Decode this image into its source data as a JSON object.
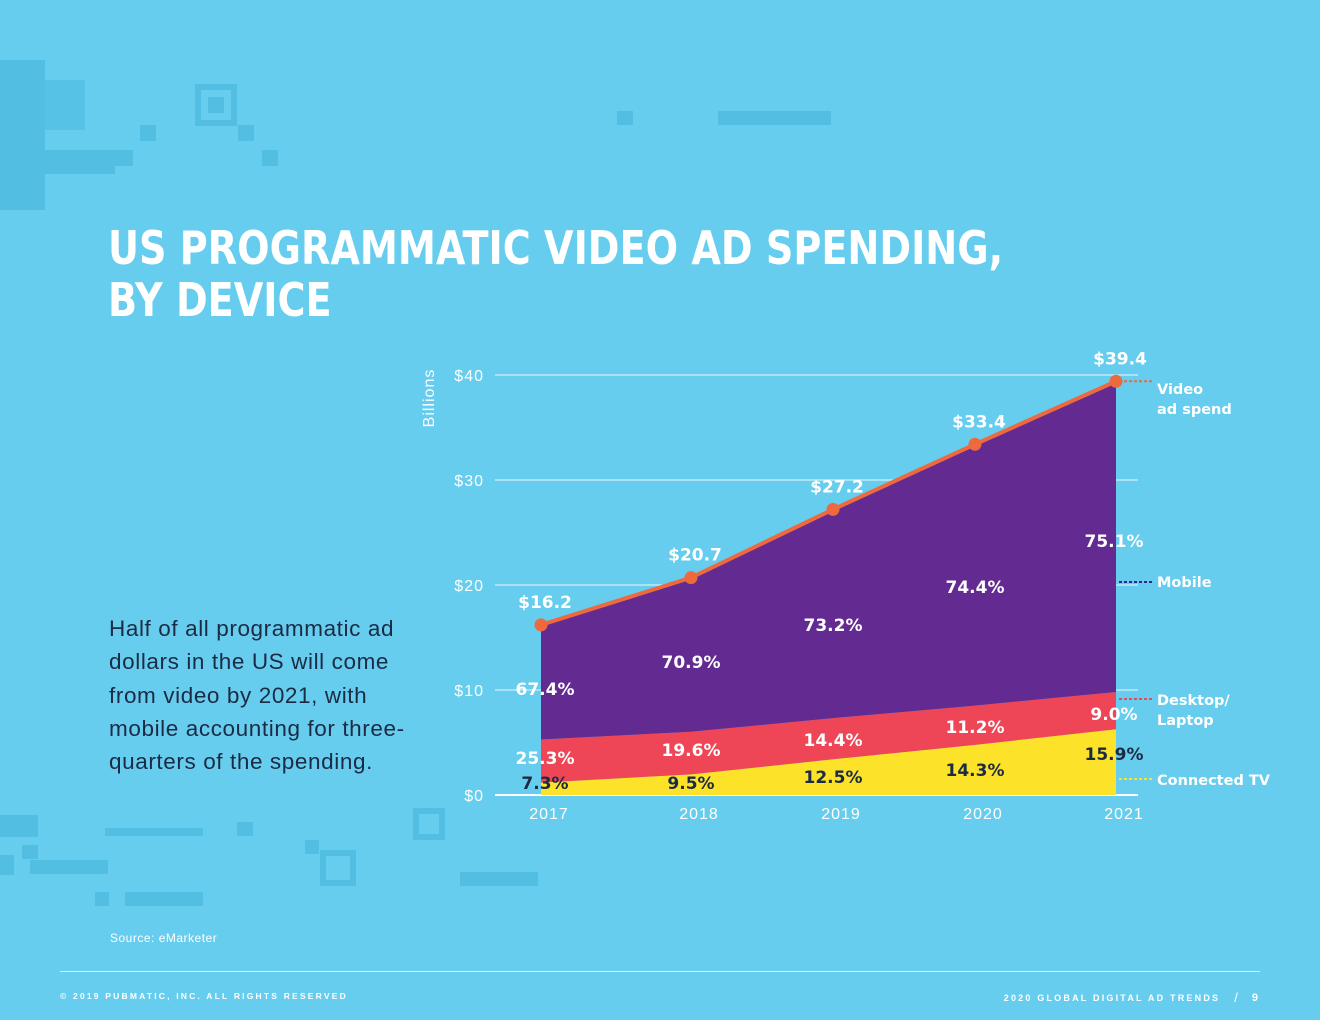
{
  "page": {
    "title_line1": "US PROGRAMMATIC VIDEO AD SPENDING,",
    "title_line2": "BY DEVICE",
    "body": "Half of all programmatic ad dollars in the US will come from video by 2021, with mobile accounting for three-quarters of the spending.",
    "source": "Source: eMarketer",
    "copyright": "© 2019 PUBMATIC, INC. ALL RIGHTS RESERVED",
    "report": "2020 GLOBAL DIGITAL AD TRENDS",
    "separator": "/",
    "page_number": "9"
  },
  "colors": {
    "background": "#66CDEE",
    "mobile": "#632A91",
    "desktop": "#EE4656",
    "ctv": "#FDE22A",
    "line": "#EE6A3E"
  },
  "chart_data": {
    "type": "area",
    "title": "US PROGRAMMATIC VIDEO AD SPENDING, BY DEVICE",
    "ylabel": "Billions",
    "ylim": [
      0,
      40
    ],
    "yticks": [
      0,
      10,
      20,
      30,
      40
    ],
    "ytick_labels": [
      "$0",
      "$10",
      "$20",
      "$30",
      "$40"
    ],
    "categories": [
      "2017",
      "2018",
      "2019",
      "2020",
      "2021"
    ],
    "total": {
      "name": "Video ad spend",
      "values": [
        16.2,
        20.7,
        27.2,
        33.4,
        39.4
      ],
      "labels": [
        "$16.2",
        "$20.7",
        "$27.2",
        "$33.4",
        "$39.4"
      ]
    },
    "series": [
      {
        "name": "Connected TV",
        "share_pct": [
          7.3,
          9.5,
          12.5,
          14.3,
          15.9
        ],
        "labels": [
          "7.3%",
          "9.5%",
          "12.5%",
          "14.3%",
          "15.9%"
        ]
      },
      {
        "name": "Desktop/Laptop",
        "share_pct": [
          25.3,
          19.6,
          14.4,
          11.2,
          9.0
        ],
        "labels": [
          "25.3%",
          "19.6%",
          "14.4%",
          "11.2%",
          "9.0%"
        ]
      },
      {
        "name": "Mobile",
        "share_pct": [
          67.4,
          70.9,
          73.2,
          74.4,
          75.1
        ],
        "labels": [
          "67.4%",
          "70.9%",
          "73.2%",
          "74.4%",
          "75.1%"
        ]
      }
    ],
    "legend": [
      {
        "name": "Video",
        "name2": "ad spend"
      },
      {
        "name": "Mobile"
      },
      {
        "name": "Desktop/",
        "name2": "Laptop"
      },
      {
        "name": "Connected TV"
      }
    ],
    "legend_position": "right"
  }
}
